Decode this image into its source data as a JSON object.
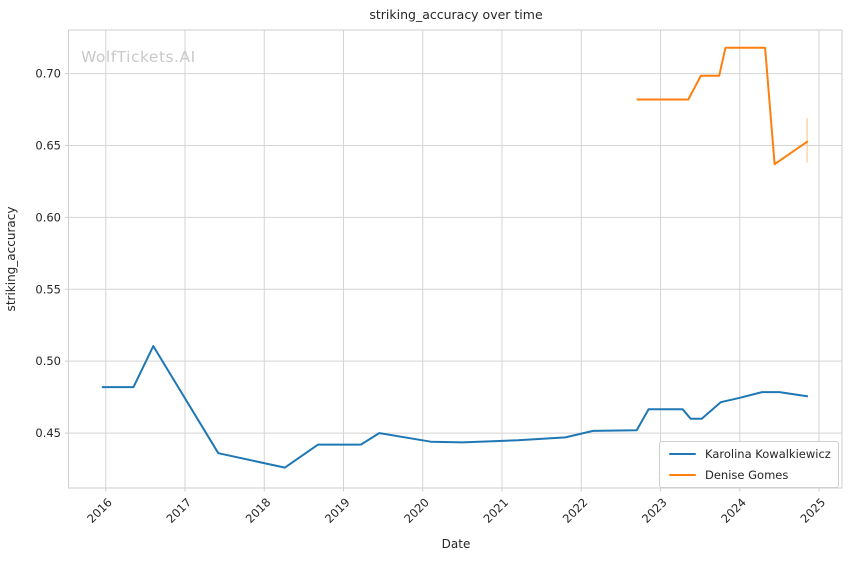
{
  "title": "striking_accuracy over time",
  "watermark": "WolfTickets.AI",
  "x_axis": {
    "label": "Date"
  },
  "y_axis": {
    "label": "striking_accuracy"
  },
  "legend": {
    "items": [
      {
        "label": "Karolina Kowalkiewicz",
        "color": "#1f77b4"
      },
      {
        "label": "Denise Gomes",
        "color": "#ff7f0e"
      }
    ]
  },
  "colors": {
    "accent_blue": "#1f77b4",
    "accent_orange": "#ff7f0e",
    "grid": "#d4d4d4",
    "spine": "#cfcfcf",
    "tick_text": "#262626",
    "watermark": "#c9c9c9",
    "annotation": "#ffd8b3"
  },
  "chart_data": {
    "type": "line",
    "title": "striking_accuracy over time",
    "xlabel": "Date",
    "ylabel": "striking_accuracy",
    "xlim": [
      2015.53,
      2025.29
    ],
    "ylim": [
      0.4118,
      0.7303
    ],
    "xticks": [
      2016,
      2017,
      2018,
      2019,
      2020,
      2021,
      2022,
      2023,
      2024,
      2025
    ],
    "yticks": [
      0.45,
      0.5,
      0.55,
      0.6,
      0.65,
      0.7
    ],
    "grid": true,
    "legend_position": "lower right",
    "series": [
      {
        "name": "Karolina Kowalkiewicz",
        "color": "#1f77b4",
        "points": [
          [
            2015.95,
            0.482
          ],
          [
            2016.35,
            0.482
          ],
          [
            2016.6,
            0.5105
          ],
          [
            2017.42,
            0.436
          ],
          [
            2018.26,
            0.426
          ],
          [
            2018.68,
            0.442
          ],
          [
            2019.22,
            0.442
          ],
          [
            2019.45,
            0.45
          ],
          [
            2020.1,
            0.444
          ],
          [
            2020.5,
            0.4435
          ],
          [
            2021.2,
            0.445
          ],
          [
            2021.8,
            0.447
          ],
          [
            2022.15,
            0.4515
          ],
          [
            2022.7,
            0.452
          ],
          [
            2022.85,
            0.4665
          ],
          [
            2023.28,
            0.4665
          ],
          [
            2023.38,
            0.46
          ],
          [
            2023.52,
            0.46
          ],
          [
            2023.76,
            0.4715
          ],
          [
            2024.0,
            0.4745
          ],
          [
            2024.28,
            0.4785
          ],
          [
            2024.5,
            0.4785
          ],
          [
            2024.86,
            0.4755
          ]
        ]
      },
      {
        "name": "Denise Gomes",
        "color": "#ff7f0e",
        "points": [
          [
            2022.7,
            0.682
          ],
          [
            2023.35,
            0.682
          ],
          [
            2023.51,
            0.6985
          ],
          [
            2023.74,
            0.6985
          ],
          [
            2023.82,
            0.718
          ],
          [
            2024.32,
            0.718
          ],
          [
            2024.44,
            0.637
          ],
          [
            2024.86,
            0.653
          ]
        ]
      }
    ],
    "annotations": [
      {
        "type": "vline",
        "x": 2024.85,
        "y0": 0.638,
        "y1": 0.669,
        "color": "#ffd8b3"
      }
    ]
  }
}
